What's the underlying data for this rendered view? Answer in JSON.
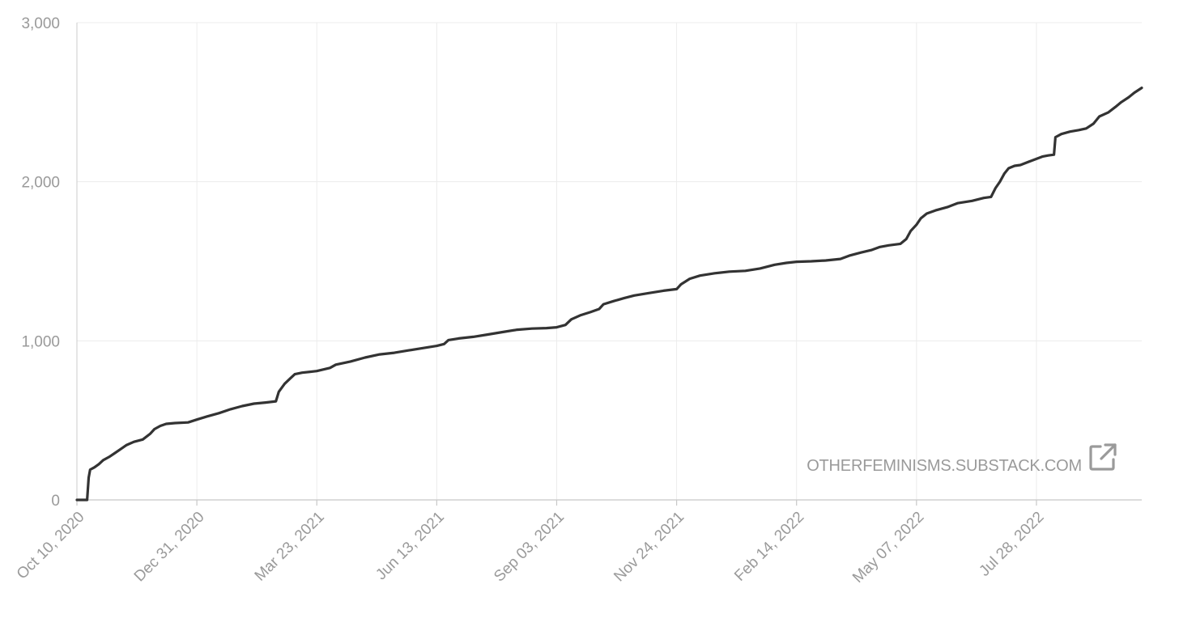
{
  "chart_data": {
    "type": "line",
    "title": "",
    "xlabel": "",
    "ylabel": "",
    "xlim": [
      "2020-10-10",
      "2022-10-08"
    ],
    "ylim": [
      0,
      3000
    ],
    "grid": true,
    "legend": "none",
    "y_ticks": [
      {
        "value": 0,
        "label": "0"
      },
      {
        "value": 1000,
        "label": "1,000"
      },
      {
        "value": 2000,
        "label": "2,000"
      },
      {
        "value": 3000,
        "label": "3,000"
      }
    ],
    "x_ticks": [
      {
        "date": "2020-10-10",
        "label": "Oct 10, 2020"
      },
      {
        "date": "2020-12-31",
        "label": "Dec 31, 2020"
      },
      {
        "date": "2021-03-23",
        "label": "Mar 23, 2021"
      },
      {
        "date": "2021-06-13",
        "label": "Jun 13, 2021"
      },
      {
        "date": "2021-09-03",
        "label": "Sep 03, 2021"
      },
      {
        "date": "2021-11-24",
        "label": "Nov 24, 2021"
      },
      {
        "date": "2022-02-14",
        "label": "Feb 14, 2022"
      },
      {
        "date": "2022-05-07",
        "label": "May 07, 2022"
      },
      {
        "date": "2022-07-28",
        "label": "Jul 28, 2022"
      }
    ],
    "series": [
      {
        "color": "#333333",
        "points": [
          [
            "2020-10-10",
            0
          ],
          [
            "2020-10-17",
            0
          ],
          [
            "2020-10-18",
            140
          ],
          [
            "2020-10-19",
            190
          ],
          [
            "2020-10-22",
            205
          ],
          [
            "2020-10-25",
            225
          ],
          [
            "2020-10-28",
            250
          ],
          [
            "2020-11-01",
            270
          ],
          [
            "2020-11-05",
            295
          ],
          [
            "2020-11-09",
            320
          ],
          [
            "2020-11-13",
            345
          ],
          [
            "2020-11-18",
            365
          ],
          [
            "2020-11-24",
            380
          ],
          [
            "2020-11-29",
            415
          ],
          [
            "2020-12-02",
            445
          ],
          [
            "2020-12-06",
            465
          ],
          [
            "2020-12-10",
            478
          ],
          [
            "2020-12-16",
            483
          ],
          [
            "2020-12-25",
            487
          ],
          [
            "2020-12-31",
            505
          ],
          [
            "2021-01-07",
            525
          ],
          [
            "2021-01-15",
            545
          ],
          [
            "2021-01-23",
            570
          ],
          [
            "2021-01-31",
            590
          ],
          [
            "2021-02-08",
            605
          ],
          [
            "2021-02-16",
            612
          ],
          [
            "2021-02-23",
            620
          ],
          [
            "2021-02-25",
            680
          ],
          [
            "2021-03-01",
            730
          ],
          [
            "2021-03-05",
            765
          ],
          [
            "2021-03-08",
            790
          ],
          [
            "2021-03-13",
            800
          ],
          [
            "2021-03-23",
            810
          ],
          [
            "2021-04-01",
            830
          ],
          [
            "2021-04-05",
            850
          ],
          [
            "2021-04-15",
            870
          ],
          [
            "2021-04-25",
            895
          ],
          [
            "2021-05-05",
            915
          ],
          [
            "2021-05-15",
            925
          ],
          [
            "2021-05-25",
            940
          ],
          [
            "2021-06-04",
            955
          ],
          [
            "2021-06-13",
            968
          ],
          [
            "2021-06-18",
            980
          ],
          [
            "2021-06-21",
            1005
          ],
          [
            "2021-06-28",
            1015
          ],
          [
            "2021-07-08",
            1025
          ],
          [
            "2021-07-18",
            1040
          ],
          [
            "2021-07-28",
            1055
          ],
          [
            "2021-08-07",
            1070
          ],
          [
            "2021-08-17",
            1077
          ],
          [
            "2021-08-27",
            1080
          ],
          [
            "2021-09-03",
            1085
          ],
          [
            "2021-09-09",
            1100
          ],
          [
            "2021-09-13",
            1135
          ],
          [
            "2021-09-19",
            1160
          ],
          [
            "2021-09-26",
            1180
          ],
          [
            "2021-10-02",
            1200
          ],
          [
            "2021-10-05",
            1230
          ],
          [
            "2021-10-12",
            1250
          ],
          [
            "2021-10-19",
            1268
          ],
          [
            "2021-10-26",
            1285
          ],
          [
            "2021-11-05",
            1300
          ],
          [
            "2021-11-15",
            1315
          ],
          [
            "2021-11-24",
            1325
          ],
          [
            "2021-11-27",
            1355
          ],
          [
            "2021-12-03",
            1390
          ],
          [
            "2021-12-10",
            1410
          ],
          [
            "2021-12-20",
            1425
          ],
          [
            "2021-12-30",
            1435
          ],
          [
            "2022-01-10",
            1440
          ],
          [
            "2022-01-20",
            1455
          ],
          [
            "2022-01-30",
            1478
          ],
          [
            "2022-02-07",
            1490
          ],
          [
            "2022-02-14",
            1497
          ],
          [
            "2022-02-24",
            1500
          ],
          [
            "2022-03-06",
            1505
          ],
          [
            "2022-03-16",
            1515
          ],
          [
            "2022-03-22",
            1535
          ],
          [
            "2022-03-30",
            1555
          ],
          [
            "2022-04-06",
            1570
          ],
          [
            "2022-04-12",
            1590
          ],
          [
            "2022-04-18",
            1600
          ],
          [
            "2022-04-26",
            1610
          ],
          [
            "2022-04-30",
            1640
          ],
          [
            "2022-05-03",
            1690
          ],
          [
            "2022-05-07",
            1730
          ],
          [
            "2022-05-10",
            1770
          ],
          [
            "2022-05-14",
            1800
          ],
          [
            "2022-05-20",
            1820
          ],
          [
            "2022-05-28",
            1840
          ],
          [
            "2022-06-04",
            1865
          ],
          [
            "2022-06-14",
            1880
          ],
          [
            "2022-06-22",
            1898
          ],
          [
            "2022-06-27",
            1905
          ],
          [
            "2022-06-30",
            1960
          ],
          [
            "2022-07-03",
            2000
          ],
          [
            "2022-07-06",
            2050
          ],
          [
            "2022-07-09",
            2085
          ],
          [
            "2022-07-13",
            2100
          ],
          [
            "2022-07-17",
            2105
          ],
          [
            "2022-07-24",
            2130
          ],
          [
            "2022-08-01",
            2158
          ],
          [
            "2022-08-05",
            2165
          ],
          [
            "2022-08-09",
            2170
          ],
          [
            "2022-08-10",
            2280
          ],
          [
            "2022-08-14",
            2300
          ],
          [
            "2022-08-20",
            2315
          ],
          [
            "2022-08-26",
            2325
          ],
          [
            "2022-08-31",
            2335
          ],
          [
            "2022-09-05",
            2365
          ],
          [
            "2022-09-09",
            2410
          ],
          [
            "2022-09-15",
            2435
          ],
          [
            "2022-09-20",
            2470
          ],
          [
            "2022-09-24",
            2500
          ],
          [
            "2022-09-29",
            2530
          ],
          [
            "2022-10-03",
            2560
          ],
          [
            "2022-10-08",
            2590
          ]
        ]
      }
    ]
  },
  "watermark": {
    "text": "OTHERFEMINISMS.SUBSTACK.COM",
    "icon": "external-link-icon"
  }
}
